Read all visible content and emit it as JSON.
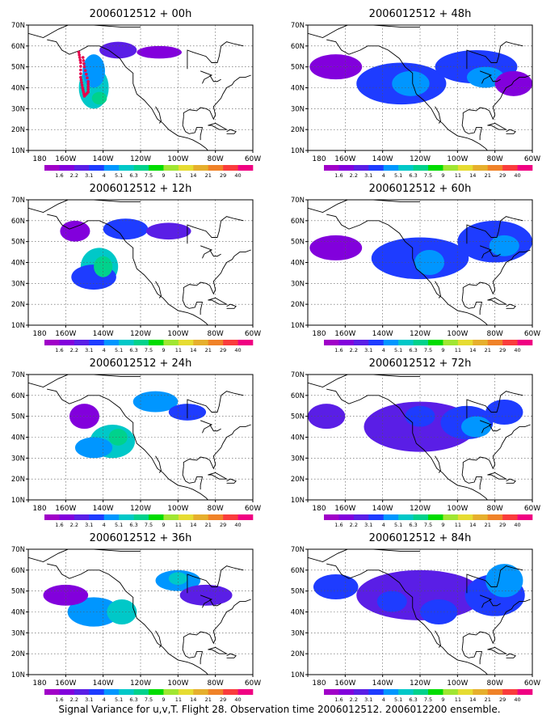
{
  "caption": "Signal Variance for u,v,T. Flight 28. Observation time 2006012512. 2006012200 ensemble.",
  "colorbar": {
    "labels": [
      "1.6",
      "2.2",
      "3.1",
      "4",
      "5.1",
      "6.3",
      "7.5",
      "9",
      "11",
      "14",
      "21",
      "29",
      "40"
    ],
    "colors": [
      "#a000c8",
      "#8200dc",
      "#5a1ee6",
      "#1e3cff",
      "#0096ff",
      "#00c8c8",
      "#00d28c",
      "#00dc00",
      "#a0e632",
      "#e6dc32",
      "#e6af2d",
      "#f08228",
      "#fa3c3c",
      "#f00082"
    ]
  },
  "chart_data": [
    {
      "type": "heatmap",
      "title": "2006012512 + 00h",
      "x_ticks": [
        "180",
        "160W",
        "140W",
        "120W",
        "100W",
        "80W",
        "60W"
      ],
      "y_ticks": [
        "10N",
        "20N",
        "30N",
        "40N",
        "50N",
        "60N",
        "70N"
      ],
      "xlim": [
        -180,
        -60
      ],
      "ylim": [
        10,
        70
      ],
      "blobs": [
        {
          "lon": -145,
          "lat": 40,
          "rlon": 8,
          "rlat": 10,
          "level": 5
        },
        {
          "lon": -145,
          "lat": 48,
          "rlon": 6,
          "rlat": 8,
          "level": 4
        },
        {
          "lon": -132,
          "lat": 58,
          "rlon": 10,
          "rlat": 4,
          "level": 2
        },
        {
          "lon": -110,
          "lat": 57,
          "rlon": 12,
          "rlat": 3,
          "level": 1
        },
        {
          "lon": -142,
          "lat": 35,
          "rlon": 4,
          "rlat": 3,
          "level": 6
        }
      ],
      "flight_track": [
        [
          -153,
          57
        ],
        [
          -152,
          52
        ],
        [
          -152,
          45
        ],
        [
          -151,
          40
        ],
        [
          -150,
          36
        ],
        [
          -148,
          38
        ],
        [
          -148,
          43
        ],
        [
          -150,
          50
        ],
        [
          -151,
          56
        ]
      ]
    },
    {
      "type": "heatmap",
      "title": "2006012512 + 12h",
      "x_ticks": [
        "180",
        "160W",
        "140W",
        "120W",
        "100W",
        "80W",
        "60W"
      ],
      "y_ticks": [
        "10N",
        "20N",
        "30N",
        "40N",
        "50N",
        "60N",
        "70N"
      ],
      "xlim": [
        -180,
        -60
      ],
      "ylim": [
        10,
        70
      ],
      "blobs": [
        {
          "lon": -142,
          "lat": 38,
          "rlon": 10,
          "rlat": 9,
          "level": 5
        },
        {
          "lon": -145,
          "lat": 33,
          "rlon": 12,
          "rlat": 6,
          "level": 3
        },
        {
          "lon": -128,
          "lat": 56,
          "rlon": 12,
          "rlat": 5,
          "level": 3
        },
        {
          "lon": -105,
          "lat": 55,
          "rlon": 12,
          "rlat": 4,
          "level": 2
        },
        {
          "lon": -155,
          "lat": 55,
          "rlon": 8,
          "rlat": 5,
          "level": 1
        },
        {
          "lon": -140,
          "lat": 38,
          "rlon": 5,
          "rlat": 5,
          "level": 6
        }
      ]
    },
    {
      "type": "heatmap",
      "title": "2006012512 + 24h",
      "x_ticks": [
        "180",
        "160W",
        "140W",
        "120W",
        "100W",
        "80W",
        "60W"
      ],
      "y_ticks": [
        "10N",
        "20N",
        "30N",
        "40N",
        "50N",
        "60N",
        "70N"
      ],
      "xlim": [
        -180,
        -60
      ],
      "ylim": [
        10,
        70
      ],
      "blobs": [
        {
          "lon": -135,
          "lat": 38,
          "rlon": 12,
          "rlat": 8,
          "level": 5
        },
        {
          "lon": -145,
          "lat": 35,
          "rlon": 10,
          "rlat": 5,
          "level": 4
        },
        {
          "lon": -112,
          "lat": 57,
          "rlon": 12,
          "rlat": 5,
          "level": 4
        },
        {
          "lon": -95,
          "lat": 52,
          "rlon": 10,
          "rlat": 4,
          "level": 3
        },
        {
          "lon": -150,
          "lat": 50,
          "rlon": 8,
          "rlat": 6,
          "level": 1
        },
        {
          "lon": -132,
          "lat": 40,
          "rlon": 5,
          "rlat": 4,
          "level": 6
        }
      ]
    },
    {
      "type": "heatmap",
      "title": "2006012512 + 36h",
      "x_ticks": [
        "180",
        "160W",
        "140W",
        "120W",
        "100W",
        "80W",
        "60W"
      ],
      "y_ticks": [
        "10N",
        "20N",
        "30N",
        "40N",
        "50N",
        "60N",
        "70N"
      ],
      "xlim": [
        -180,
        -60
      ],
      "ylim": [
        10,
        70
      ],
      "blobs": [
        {
          "lon": -145,
          "lat": 40,
          "rlon": 14,
          "rlat": 7,
          "level": 4
        },
        {
          "lon": -130,
          "lat": 40,
          "rlon": 8,
          "rlat": 6,
          "level": 5
        },
        {
          "lon": -100,
          "lat": 55,
          "rlon": 12,
          "rlat": 5,
          "level": 4
        },
        {
          "lon": -85,
          "lat": 48,
          "rlon": 14,
          "rlat": 5,
          "level": 2
        },
        {
          "lon": -160,
          "lat": 48,
          "rlon": 12,
          "rlat": 5,
          "level": 1
        },
        {
          "lon": -100,
          "lat": 56,
          "rlon": 5,
          "rlat": 3,
          "level": 5
        }
      ]
    },
    {
      "type": "heatmap",
      "title": "2006012512 + 48h",
      "x_ticks": [
        "180",
        "160W",
        "140W",
        "120W",
        "100W",
        "80W",
        "60W"
      ],
      "y_ticks": [
        "10N",
        "20N",
        "30N",
        "40N",
        "50N",
        "60N",
        "70N"
      ],
      "xlim": [
        -180,
        -60
      ],
      "ylim": [
        10,
        70
      ],
      "blobs": [
        {
          "lon": -130,
          "lat": 42,
          "rlon": 24,
          "rlat": 10,
          "level": 3
        },
        {
          "lon": -125,
          "lat": 42,
          "rlon": 10,
          "rlat": 6,
          "level": 4
        },
        {
          "lon": -90,
          "lat": 50,
          "rlon": 22,
          "rlat": 8,
          "level": 3
        },
        {
          "lon": -85,
          "lat": 45,
          "rlon": 10,
          "rlat": 5,
          "level": 4
        },
        {
          "lon": -165,
          "lat": 50,
          "rlon": 14,
          "rlat": 6,
          "level": 1
        },
        {
          "lon": -70,
          "lat": 42,
          "rlon": 10,
          "rlat": 6,
          "level": 1
        }
      ]
    },
    {
      "type": "heatmap",
      "title": "2006012512 + 60h",
      "x_ticks": [
        "180",
        "160W",
        "140W",
        "120W",
        "100W",
        "80W",
        "60W"
      ],
      "y_ticks": [
        "10N",
        "20N",
        "30N",
        "40N",
        "50N",
        "60N",
        "70N"
      ],
      "xlim": [
        -180,
        -60
      ],
      "ylim": [
        10,
        70
      ],
      "blobs": [
        {
          "lon": -120,
          "lat": 42,
          "rlon": 26,
          "rlat": 10,
          "level": 3
        },
        {
          "lon": -115,
          "lat": 40,
          "rlon": 8,
          "rlat": 6,
          "level": 4
        },
        {
          "lon": -80,
          "lat": 50,
          "rlon": 20,
          "rlat": 10,
          "level": 3
        },
        {
          "lon": -165,
          "lat": 47,
          "rlon": 14,
          "rlat": 6,
          "level": 1
        },
        {
          "lon": -75,
          "lat": 48,
          "rlon": 8,
          "rlat": 5,
          "level": 4
        }
      ]
    },
    {
      "type": "heatmap",
      "title": "2006012512 + 72h",
      "x_ticks": [
        "180",
        "160W",
        "140W",
        "120W",
        "100W",
        "80W",
        "60W"
      ],
      "y_ticks": [
        "10N",
        "20N",
        "30N",
        "40N",
        "50N",
        "60N",
        "70N"
      ],
      "xlim": [
        -180,
        -60
      ],
      "ylim": [
        10,
        70
      ],
      "blobs": [
        {
          "lon": -120,
          "lat": 45,
          "rlon": 30,
          "rlat": 12,
          "level": 2
        },
        {
          "lon": -95,
          "lat": 47,
          "rlon": 14,
          "rlat": 8,
          "level": 3
        },
        {
          "lon": -90,
          "lat": 45,
          "rlon": 8,
          "rlat": 5,
          "level": 4
        },
        {
          "lon": -170,
          "lat": 50,
          "rlon": 10,
          "rlat": 6,
          "level": 2
        },
        {
          "lon": -120,
          "lat": 50,
          "rlon": 8,
          "rlat": 5,
          "level": 3
        },
        {
          "lon": -75,
          "lat": 52,
          "rlon": 10,
          "rlat": 6,
          "level": 3
        }
      ]
    },
    {
      "type": "heatmap",
      "title": "2006012512 + 84h",
      "x_ticks": [
        "180",
        "160W",
        "140W",
        "120W",
        "100W",
        "80W",
        "60W"
      ],
      "y_ticks": [
        "10N",
        "20N",
        "30N",
        "40N",
        "50N",
        "60N",
        "70N"
      ],
      "xlim": [
        -180,
        -60
      ],
      "ylim": [
        10,
        70
      ],
      "blobs": [
        {
          "lon": -120,
          "lat": 48,
          "rlon": 34,
          "rlat": 12,
          "level": 2
        },
        {
          "lon": -80,
          "lat": 48,
          "rlon": 16,
          "rlat": 10,
          "level": 3
        },
        {
          "lon": -75,
          "lat": 55,
          "rlon": 10,
          "rlat": 8,
          "level": 4
        },
        {
          "lon": -165,
          "lat": 52,
          "rlon": 12,
          "rlat": 6,
          "level": 3
        },
        {
          "lon": -110,
          "lat": 40,
          "rlon": 10,
          "rlat": 6,
          "level": 3
        },
        {
          "lon": -135,
          "lat": 45,
          "rlon": 8,
          "rlat": 5,
          "level": 3
        }
      ]
    }
  ]
}
